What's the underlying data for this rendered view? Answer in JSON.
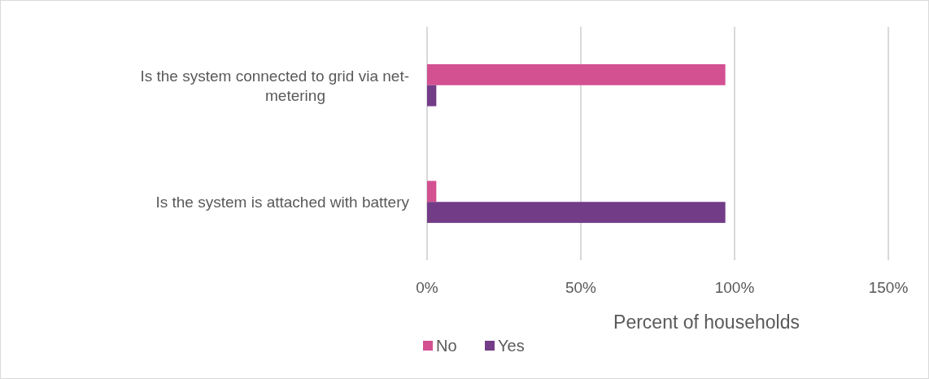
{
  "chart_data": {
    "type": "bar",
    "orientation": "horizontal",
    "categories": [
      "Is the system connected to grid via net-metering",
      "Is the system is attached with battery"
    ],
    "series": [
      {
        "name": "No",
        "color": "#d35091",
        "values": [
          97,
          3
        ]
      },
      {
        "name": "Yes",
        "color": "#733c87",
        "values": [
          3,
          97
        ]
      }
    ],
    "xlim": [
      0,
      150
    ],
    "xticks": [
      {
        "value": 0,
        "label": "0%"
      },
      {
        "value": 50,
        "label": "50%"
      },
      {
        "value": 100,
        "label": "100%"
      },
      {
        "value": 150,
        "label": "150%"
      }
    ],
    "xlabel": "Percent of households",
    "grid": "x",
    "legend": "bottom"
  }
}
